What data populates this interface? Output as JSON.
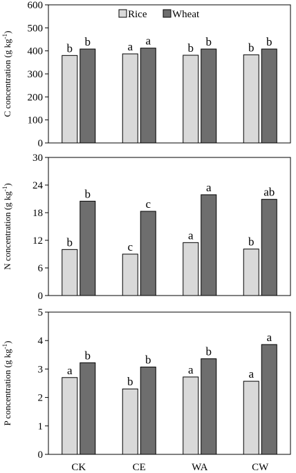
{
  "colors": {
    "rice": "#d9d9d9",
    "wheat": "#6e6e6e",
    "edge": "#000000"
  },
  "chart_data": [
    {
      "type": "bar",
      "ylabel": "C concentration (g kg",
      "ylabel_sup": "-1",
      "ylabel_end": ")",
      "ylim": [
        0,
        600
      ],
      "yticks": [
        0,
        100,
        200,
        300,
        400,
        500,
        600
      ],
      "categories": [
        "CK",
        "CE",
        "WA",
        "CW"
      ],
      "legend": "top-center",
      "series": [
        {
          "name": "Rice",
          "values": [
            380,
            387,
            381,
            383
          ],
          "letters": [
            "b",
            "a",
            "b",
            "b"
          ]
        },
        {
          "name": "Wheat",
          "values": [
            408,
            412,
            408,
            408
          ],
          "letters": [
            "b",
            "a",
            "b",
            "b"
          ]
        }
      ]
    },
    {
      "type": "bar",
      "ylabel": "N concentration (g kg",
      "ylabel_sup": "-1",
      "ylabel_end": ")",
      "ylim": [
        0,
        30
      ],
      "yticks": [
        0,
        6,
        12,
        18,
        24,
        30
      ],
      "categories": [
        "CK",
        "CE",
        "WA",
        "CW"
      ],
      "series": [
        {
          "values": [
            10.0,
            9.0,
            11.5,
            10.1
          ],
          "letters": [
            "b",
            "c",
            "a",
            "b"
          ]
        },
        {
          "values": [
            20.5,
            18.3,
            21.9,
            20.9
          ],
          "letters": [
            "b",
            "c",
            "a",
            "ab"
          ]
        }
      ]
    },
    {
      "type": "bar",
      "ylabel": "P concentration (g kg",
      "ylabel_sup": "-1",
      "ylabel_end": ")",
      "ylim": [
        0,
        5
      ],
      "yticks": [
        0,
        1,
        2,
        3,
        4,
        5
      ],
      "categories": [
        "CK",
        "CE",
        "WA",
        "CW"
      ],
      "series": [
        {
          "values": [
            2.7,
            2.3,
            2.72,
            2.57
          ],
          "letters": [
            "a",
            "b",
            "a",
            "a"
          ]
        },
        {
          "values": [
            3.22,
            3.07,
            3.36,
            3.86
          ],
          "letters": [
            "b",
            "b",
            "b",
            "a"
          ]
        }
      ]
    }
  ]
}
